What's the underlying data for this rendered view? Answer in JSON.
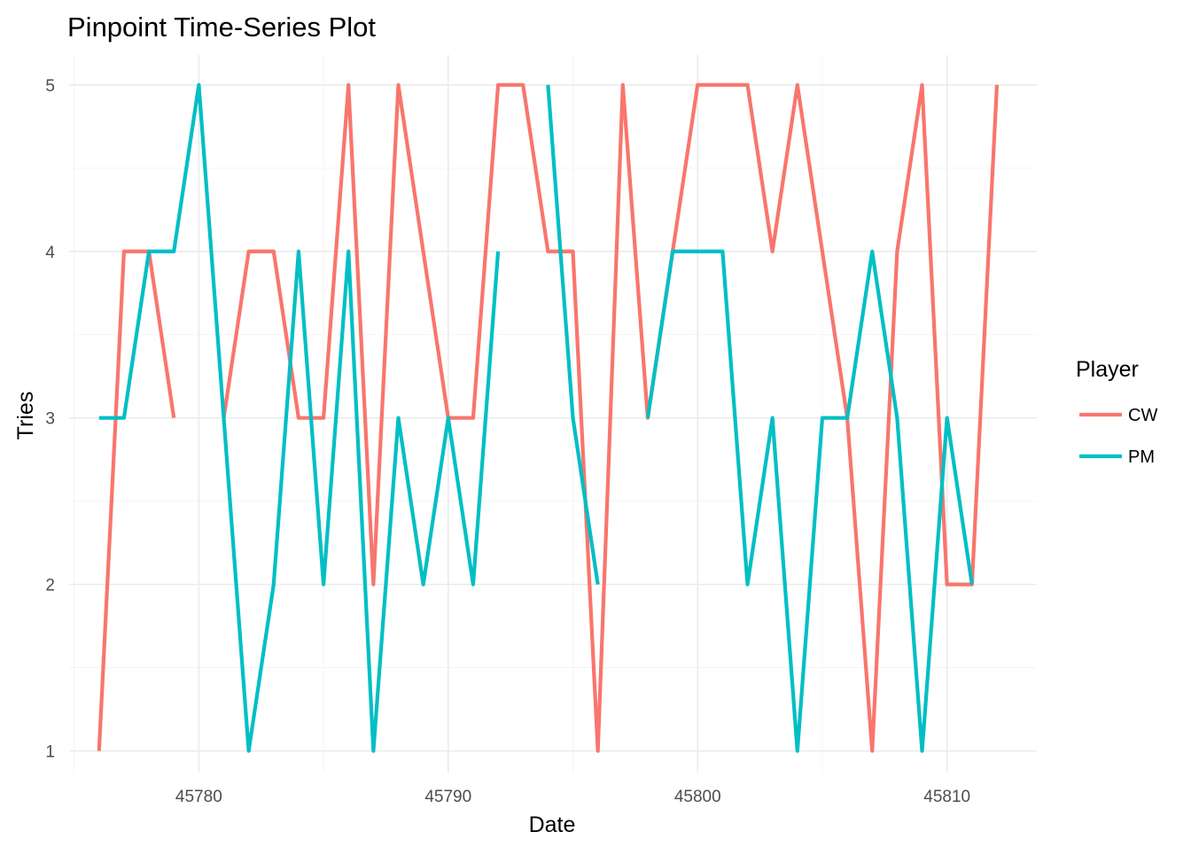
{
  "chart_data": {
    "type": "line",
    "title": "Pinpoint Time-Series Plot",
    "xlabel": "Date",
    "ylabel": "Tries",
    "xlim": [
      45774.8,
      45813.6
    ],
    "ylim": [
      0.87,
      5.18
    ],
    "x_ticks": [
      45780,
      45790,
      45800,
      45810
    ],
    "y_ticks": [
      1,
      2,
      3,
      4,
      5
    ],
    "grid": true,
    "legend": {
      "title": "Player",
      "position": "right",
      "entries": [
        "CW",
        "PM"
      ]
    },
    "series": [
      {
        "name": "CW",
        "color": "#F8766D",
        "segments": [
          [
            [
              45776,
              1
            ],
            [
              45777,
              4
            ],
            [
              45778,
              4
            ],
            [
              45779,
              3
            ]
          ],
          [
            [
              45781,
              3
            ],
            [
              45782,
              4
            ],
            [
              45783,
              4
            ],
            [
              45784,
              3
            ],
            [
              45785,
              3
            ],
            [
              45786,
              5
            ],
            [
              45787,
              2
            ],
            [
              45788,
              5
            ],
            [
              45789,
              4
            ],
            [
              45790,
              3
            ],
            [
              45791,
              3
            ],
            [
              45792,
              5
            ],
            [
              45793,
              5
            ],
            [
              45794,
              4
            ],
            [
              45795,
              4
            ],
            [
              45796,
              1
            ],
            [
              45797,
              5
            ],
            [
              45798,
              3
            ],
            [
              45799,
              4
            ],
            [
              45800,
              5
            ],
            [
              45801,
              5
            ],
            [
              45802,
              5
            ],
            [
              45803,
              4
            ],
            [
              45804,
              5
            ],
            [
              45805,
              4
            ],
            [
              45806,
              3
            ],
            [
              45807,
              1
            ],
            [
              45808,
              4
            ],
            [
              45809,
              5
            ],
            [
              45810,
              2
            ],
            [
              45811,
              2
            ],
            [
              45812,
              5
            ]
          ]
        ]
      },
      {
        "name": "PM",
        "color": "#00BFC4",
        "segments": [
          [
            [
              45776,
              3
            ],
            [
              45777,
              3
            ],
            [
              45778,
              4
            ],
            [
              45779,
              4
            ],
            [
              45780,
              5
            ],
            [
              45781,
              3
            ],
            [
              45782,
              1
            ],
            [
              45783,
              2
            ],
            [
              45784,
              4
            ],
            [
              45785,
              2
            ],
            [
              45786,
              4
            ],
            [
              45787,
              1
            ],
            [
              45788,
              3
            ],
            [
              45789,
              2
            ],
            [
              45790,
              3
            ],
            [
              45791,
              2
            ],
            [
              45792,
              4
            ]
          ],
          [
            [
              45794,
              5
            ],
            [
              45795,
              3
            ],
            [
              45796,
              2
            ]
          ],
          [
            [
              45798,
              3
            ],
            [
              45799,
              4
            ],
            [
              45800,
              4
            ],
            [
              45801,
              4
            ],
            [
              45802,
              2
            ],
            [
              45803,
              3
            ],
            [
              45804,
              1
            ],
            [
              45805,
              3
            ],
            [
              45806,
              3
            ],
            [
              45807,
              4
            ],
            [
              45808,
              3
            ],
            [
              45809,
              1
            ],
            [
              45810,
              3
            ],
            [
              45811,
              2
            ]
          ]
        ]
      }
    ]
  }
}
